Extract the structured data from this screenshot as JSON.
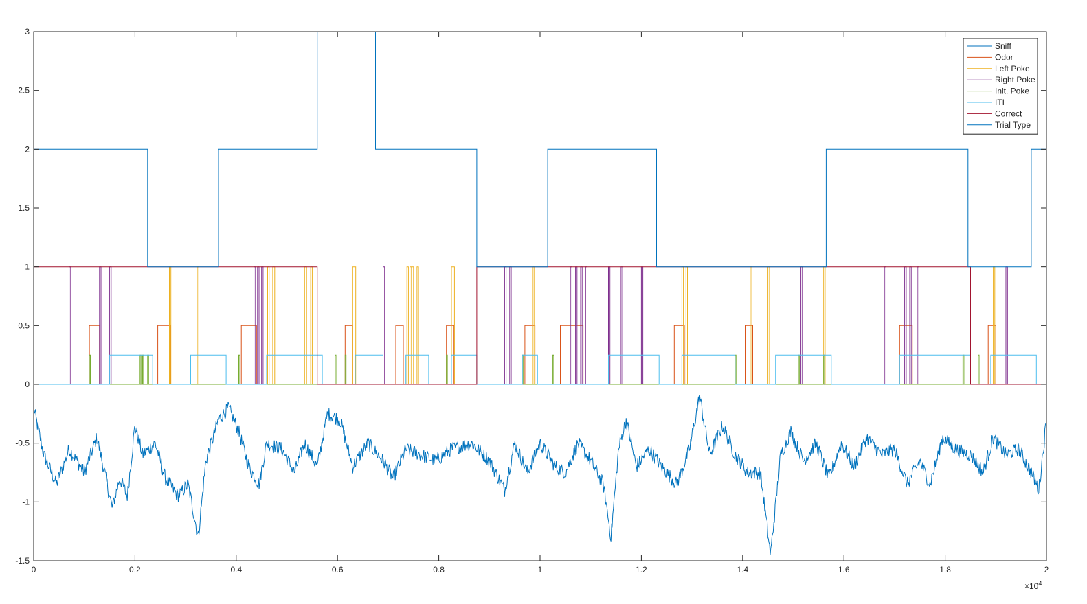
{
  "chart_data": {
    "type": "line",
    "title": "",
    "xlabel": "",
    "ylabel": "",
    "xlim": [
      0,
      20000
    ],
    "ylim": [
      -1.5,
      3
    ],
    "grid": false,
    "legend_position": "top-right",
    "x_exponent_label": "×10",
    "x_exponent_power": "4",
    "x_ticks": [
      {
        "value": 0,
        "label": "0"
      },
      {
        "value": 2000,
        "label": "0.2"
      },
      {
        "value": 4000,
        "label": "0.4"
      },
      {
        "value": 6000,
        "label": "0.6"
      },
      {
        "value": 8000,
        "label": "0.8"
      },
      {
        "value": 10000,
        "label": "1"
      },
      {
        "value": 12000,
        "label": "1.2"
      },
      {
        "value": 14000,
        "label": "1.4"
      },
      {
        "value": 16000,
        "label": "1.6"
      },
      {
        "value": 18000,
        "label": "1.8"
      },
      {
        "value": 20000,
        "label": "2"
      }
    ],
    "y_ticks": [
      {
        "value": -1.5,
        "label": "-1.5"
      },
      {
        "value": -1,
        "label": "-1"
      },
      {
        "value": -0.5,
        "label": "-0.5"
      },
      {
        "value": 0,
        "label": "0"
      },
      {
        "value": 0.5,
        "label": "0.5"
      },
      {
        "value": 1,
        "label": "1"
      },
      {
        "value": 1.5,
        "label": "1.5"
      },
      {
        "value": 2,
        "label": "2"
      },
      {
        "value": 2.5,
        "label": "2.5"
      },
      {
        "value": 3,
        "label": "3"
      }
    ],
    "series": [
      {
        "name": "Sniff",
        "color": "#0072BD",
        "style": "noise",
        "points": [
          [
            0,
            -0.2
          ],
          [
            200,
            -0.6
          ],
          [
            450,
            -0.85
          ],
          [
            700,
            -0.55
          ],
          [
            1000,
            -0.75
          ],
          [
            1250,
            -0.45
          ],
          [
            1550,
            -1.05
          ],
          [
            1700,
            -0.8
          ],
          [
            1850,
            -0.95
          ],
          [
            2000,
            -0.35
          ],
          [
            2150,
            -0.6
          ],
          [
            2400,
            -0.5
          ],
          [
            2600,
            -0.8
          ],
          [
            2850,
            -0.95
          ],
          [
            3050,
            -0.85
          ],
          [
            3250,
            -1.3
          ],
          [
            3400,
            -0.65
          ],
          [
            3650,
            -0.3
          ],
          [
            3850,
            -0.2
          ],
          [
            4050,
            -0.4
          ],
          [
            4250,
            -0.7
          ],
          [
            4450,
            -0.85
          ],
          [
            4600,
            -0.5
          ],
          [
            4900,
            -0.55
          ],
          [
            5150,
            -0.75
          ],
          [
            5350,
            -0.5
          ],
          [
            5600,
            -0.7
          ],
          [
            5800,
            -0.25
          ],
          [
            6050,
            -0.3
          ],
          [
            6300,
            -0.7
          ],
          [
            6600,
            -0.5
          ],
          [
            6900,
            -0.65
          ],
          [
            7100,
            -0.8
          ],
          [
            7350,
            -0.55
          ],
          [
            7650,
            -0.6
          ],
          [
            7950,
            -0.65
          ],
          [
            8250,
            -0.55
          ],
          [
            8650,
            -0.5
          ],
          [
            9000,
            -0.65
          ],
          [
            9300,
            -0.9
          ],
          [
            9500,
            -0.5
          ],
          [
            9750,
            -0.75
          ],
          [
            10000,
            -0.5
          ],
          [
            10300,
            -0.7
          ],
          [
            10500,
            -0.75
          ],
          [
            10750,
            -0.5
          ],
          [
            11000,
            -0.65
          ],
          [
            11250,
            -0.85
          ],
          [
            11400,
            -1.3
          ],
          [
            11550,
            -0.55
          ],
          [
            11700,
            -0.3
          ],
          [
            11900,
            -0.7
          ],
          [
            12150,
            -0.55
          ],
          [
            12400,
            -0.7
          ],
          [
            12700,
            -0.85
          ],
          [
            12950,
            -0.55
          ],
          [
            13150,
            -0.1
          ],
          [
            13350,
            -0.6
          ],
          [
            13600,
            -0.35
          ],
          [
            13850,
            -0.6
          ],
          [
            14100,
            -0.75
          ],
          [
            14350,
            -0.75
          ],
          [
            14550,
            -1.45
          ],
          [
            14750,
            -0.6
          ],
          [
            14950,
            -0.4
          ],
          [
            15200,
            -0.65
          ],
          [
            15450,
            -0.5
          ],
          [
            15700,
            -0.8
          ],
          [
            15950,
            -0.5
          ],
          [
            16200,
            -0.7
          ],
          [
            16450,
            -0.45
          ],
          [
            16750,
            -0.6
          ],
          [
            17000,
            -0.55
          ],
          [
            17250,
            -0.85
          ],
          [
            17500,
            -0.65
          ],
          [
            17700,
            -0.85
          ],
          [
            17950,
            -0.45
          ],
          [
            18200,
            -0.55
          ],
          [
            18500,
            -0.6
          ],
          [
            18750,
            -0.75
          ],
          [
            18950,
            -0.45
          ],
          [
            19200,
            -0.6
          ],
          [
            19450,
            -0.55
          ],
          [
            19700,
            -0.75
          ],
          [
            19850,
            -0.9
          ],
          [
            20000,
            -0.3
          ]
        ]
      },
      {
        "name": "Odor",
        "color": "#D95319",
        "style": "pulses",
        "baseline": 0,
        "level": 0.5,
        "intervals": [
          [
            1100,
            1300
          ],
          [
            2450,
            2700
          ],
          [
            4100,
            4400
          ],
          [
            6150,
            6300
          ],
          [
            7150,
            7300
          ],
          [
            8150,
            8300
          ],
          [
            9700,
            9900
          ],
          [
            10400,
            10850
          ],
          [
            12650,
            12850
          ],
          [
            14050,
            14200
          ],
          [
            17100,
            17350
          ],
          [
            18850,
            19000
          ]
        ]
      },
      {
        "name": "Left Poke",
        "color": "#EDB120",
        "style": "pulses",
        "baseline": 0,
        "level": 1,
        "intervals": [
          [
            2680,
            2710
          ],
          [
            3230,
            3260
          ],
          [
            4620,
            4650
          ],
          [
            4720,
            4760
          ],
          [
            5350,
            5390
          ],
          [
            5470,
            5500
          ],
          [
            6300,
            6360
          ],
          [
            7370,
            7400
          ],
          [
            7430,
            7460
          ],
          [
            7470,
            7500
          ],
          [
            7570,
            7600
          ],
          [
            8250,
            8310
          ],
          [
            9850,
            9880
          ],
          [
            12800,
            12830
          ],
          [
            12880,
            12910
          ],
          [
            14150,
            14180
          ],
          [
            14500,
            14530
          ],
          [
            15600,
            15630
          ],
          [
            18950,
            18980
          ]
        ]
      },
      {
        "name": "Right Poke",
        "color": "#7E2F8E",
        "style": "pulses",
        "baseline": 0,
        "level": 1,
        "intervals": [
          [
            700,
            730
          ],
          [
            1300,
            1330
          ],
          [
            1500,
            1530
          ],
          [
            4350,
            4380
          ],
          [
            4420,
            4450
          ],
          [
            4500,
            4530
          ],
          [
            6900,
            6930
          ],
          [
            9300,
            9330
          ],
          [
            9400,
            9430
          ],
          [
            10600,
            10630
          ],
          [
            10700,
            10730
          ],
          [
            10800,
            10830
          ],
          [
            10900,
            10930
          ],
          [
            11350,
            11380
          ],
          [
            11600,
            11630
          ],
          [
            12000,
            12030
          ],
          [
            15150,
            15180
          ],
          [
            16800,
            16830
          ],
          [
            17200,
            17230
          ],
          [
            17300,
            17330
          ],
          [
            17450,
            17480
          ],
          [
            19200,
            19230
          ]
        ]
      },
      {
        "name": "Init. Poke",
        "color": "#77AC30",
        "style": "pulses",
        "baseline": 0,
        "level": 0.25,
        "intervals": [
          [
            1100,
            1120
          ],
          [
            2100,
            2120
          ],
          [
            2150,
            2170
          ],
          [
            2250,
            2270
          ],
          [
            4050,
            4070
          ],
          [
            5950,
            5970
          ],
          [
            6150,
            6170
          ],
          [
            8150,
            8170
          ],
          [
            9650,
            9670
          ],
          [
            10250,
            10270
          ],
          [
            13850,
            13870
          ],
          [
            15100,
            15120
          ],
          [
            15600,
            15620
          ],
          [
            18350,
            18370
          ],
          [
            18650,
            18670
          ]
        ]
      },
      {
        "name": "ITI",
        "color": "#4DBEEE",
        "style": "pulses",
        "baseline": 0,
        "level": 0.25,
        "intervals": [
          [
            1500,
            2350
          ],
          [
            3100,
            3800
          ],
          [
            4600,
            5700
          ],
          [
            6350,
            6900
          ],
          [
            7350,
            7800
          ],
          [
            8250,
            8750
          ],
          [
            9650,
            9950
          ],
          [
            11350,
            12350
          ],
          [
            12800,
            13850
          ],
          [
            14650,
            15750
          ],
          [
            17100,
            18500
          ],
          [
            18900,
            19800
          ]
        ]
      },
      {
        "name": "Correct",
        "color": "#A2142F",
        "style": "steps",
        "points": [
          [
            0,
            1
          ],
          [
            5600,
            1
          ],
          [
            5600,
            0
          ],
          [
            8750,
            0
          ],
          [
            8750,
            1
          ],
          [
            18500,
            1
          ],
          [
            18500,
            0
          ],
          [
            20000,
            0
          ]
        ]
      },
      {
        "name": "Trial Type",
        "color": "#0072BD",
        "style": "steps",
        "points": [
          [
            0,
            2
          ],
          [
            2250,
            2
          ],
          [
            2250,
            1
          ],
          [
            3650,
            1
          ],
          [
            3650,
            2
          ],
          [
            5600,
            2
          ],
          [
            5600,
            3
          ],
          [
            6750,
            3
          ],
          [
            6750,
            2
          ],
          [
            8750,
            2
          ],
          [
            8750,
            1
          ],
          [
            10150,
            1
          ],
          [
            10150,
            2
          ],
          [
            12300,
            2
          ],
          [
            12300,
            1
          ],
          [
            15650,
            1
          ],
          [
            15650,
            2
          ],
          [
            18450,
            2
          ],
          [
            18450,
            1
          ],
          [
            19700,
            1
          ],
          [
            19700,
            2
          ],
          [
            20000,
            2
          ]
        ]
      }
    ]
  }
}
